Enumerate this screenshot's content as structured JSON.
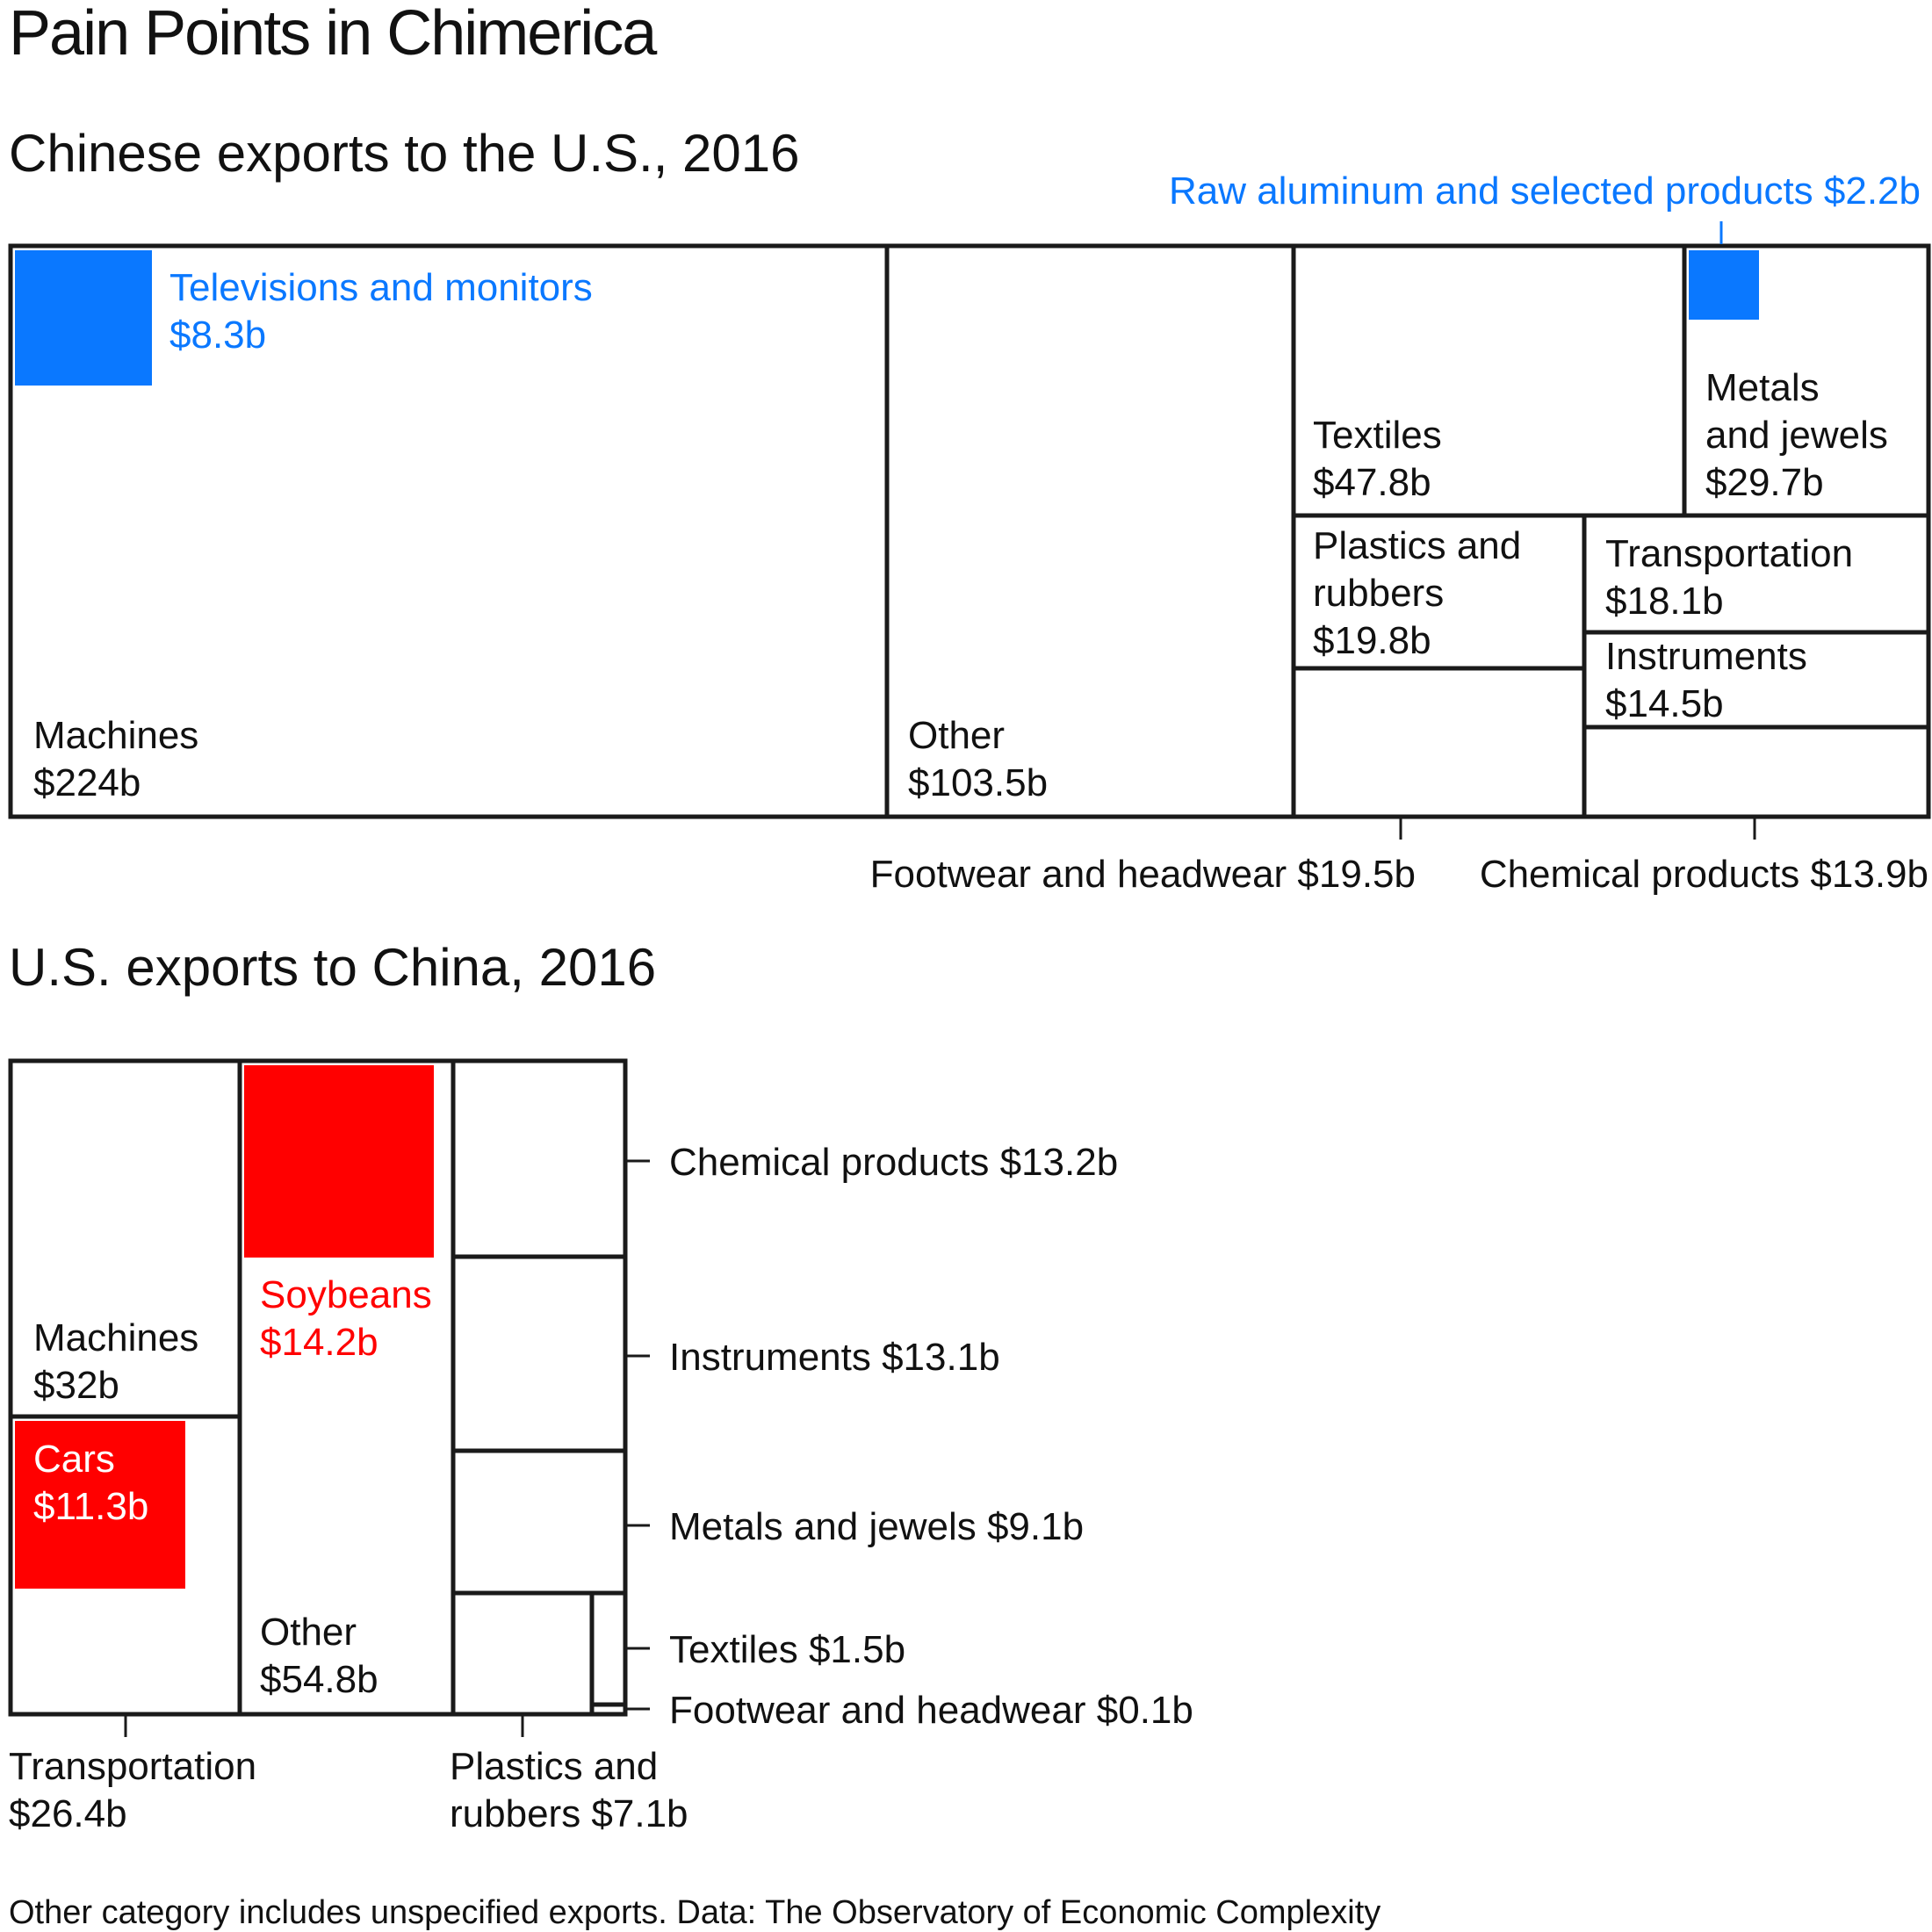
{
  "title": "Pain Points in Chimerica",
  "footnote": "Other category includes unspecified exports. Data: The Observatory of Economic Complexity",
  "colors": {
    "highlight_china": "#0a78ff",
    "highlight_us": "#ff0000",
    "border": "#1a1a1a",
    "text": "#111111"
  },
  "chart_data": [
    {
      "type": "treemap",
      "title": "Chinese exports to the U.S., 2016",
      "unit": "US$ billions",
      "categories": [
        {
          "name": "Machines",
          "value": 224,
          "label_lines": [
            "Machines",
            "$224b"
          ],
          "highlight": {
            "name": "Televisions and monitors",
            "value": 8.3,
            "label_lines": [
              "Televisions and monitors",
              "$8.3b"
            ]
          }
        },
        {
          "name": "Other",
          "value": 103.5,
          "label_lines": [
            "Other",
            "$103.5b"
          ]
        },
        {
          "name": "Textiles",
          "value": 47.8,
          "label_lines": [
            "Textiles",
            "$47.8b"
          ]
        },
        {
          "name": "Metals and jewels",
          "value": 29.7,
          "label_lines": [
            "Metals",
            "and jewels",
            "$29.7b"
          ],
          "highlight": {
            "name": "Raw aluminum and selected products",
            "value": 2.2,
            "label": "Raw aluminum and selected products $2.2b"
          }
        },
        {
          "name": "Plastics and rubbers",
          "value": 19.8,
          "label_lines": [
            "Plastics and",
            "rubbers",
            "$19.8b"
          ]
        },
        {
          "name": "Footwear and headwear",
          "value": 19.5,
          "label": "Footwear and headwear $19.5b"
        },
        {
          "name": "Transportation",
          "value": 18.1,
          "label_lines": [
            "Transportation",
            "$18.1b"
          ]
        },
        {
          "name": "Instruments",
          "value": 14.5,
          "label_lines": [
            "Instruments",
            "$14.5b"
          ]
        },
        {
          "name": "Chemical products",
          "value": 13.9,
          "label": "Chemical products $13.9b"
        }
      ]
    },
    {
      "type": "treemap",
      "title": "U.S. exports to China, 2016",
      "unit": "US$ billions",
      "categories": [
        {
          "name": "Machines",
          "value": 32,
          "label_lines": [
            "Machines",
            "$32b"
          ]
        },
        {
          "name": "Transportation",
          "value": 26.4,
          "label_lines": [
            "Transportation",
            "$26.4b"
          ],
          "highlight": {
            "name": "Cars",
            "value": 11.3,
            "label_lines": [
              "Cars",
              "$11.3b"
            ]
          }
        },
        {
          "name": "Other",
          "value": 54.8,
          "label_lines": [
            "Other",
            "$54.8b"
          ],
          "highlight": {
            "name": "Soybeans",
            "value": 14.2,
            "label_lines": [
              "Soybeans",
              "$14.2b"
            ]
          }
        },
        {
          "name": "Chemical products",
          "value": 13.2,
          "label": "Chemical products $13.2b"
        },
        {
          "name": "Instruments",
          "value": 13.1,
          "label": "Instruments $13.1b"
        },
        {
          "name": "Metals and jewels",
          "value": 9.1,
          "label": "Metals and jewels $9.1b"
        },
        {
          "name": "Plastics and rubbers",
          "value": 7.1,
          "label_lines": [
            "Plastics and",
            "rubbers $7.1b"
          ]
        },
        {
          "name": "Textiles",
          "value": 1.5,
          "label": "Textiles $1.5b"
        },
        {
          "name": "Footwear and headwear",
          "value": 0.1,
          "label": "Footwear and headwear $0.1b"
        }
      ]
    }
  ]
}
